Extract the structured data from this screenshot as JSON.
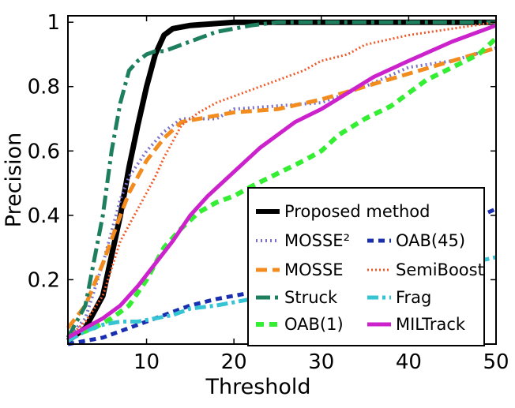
{
  "chart_data": {
    "type": "line",
    "xlabel": "Threshold",
    "ylabel": "Precision",
    "xlim": [
      1,
      50
    ],
    "ylim": [
      0,
      1.02
    ],
    "xticks": [
      10,
      20,
      30,
      40,
      50
    ],
    "yticks": [
      0.2,
      0.4,
      0.6,
      0.8,
      1
    ],
    "ytick_labels": [
      "0.2",
      "0.4",
      "0.6",
      "0.8",
      "1"
    ],
    "grid": false,
    "legend_position": "lower-right",
    "series": [
      {
        "name": "Proposed method",
        "color": "#000000",
        "style": "solid-thick",
        "x": [
          1,
          3,
          5,
          7,
          8,
          9,
          10,
          11,
          12,
          13,
          15,
          20,
          25,
          30,
          40,
          50
        ],
        "y": [
          0.01,
          0.05,
          0.15,
          0.4,
          0.55,
          0.68,
          0.8,
          0.9,
          0.96,
          0.98,
          0.99,
          1.0,
          1.0,
          1.0,
          1.0,
          1.0
        ]
      },
      {
        "name": "MOSSE²",
        "color": "#7b72c8",
        "style": "dotted",
        "x": [
          1,
          3,
          5,
          7,
          8,
          9,
          10,
          12,
          14,
          16,
          18,
          20,
          25,
          30,
          35,
          40,
          45,
          50
        ],
        "y": [
          0.02,
          0.08,
          0.25,
          0.45,
          0.52,
          0.56,
          0.6,
          0.66,
          0.7,
          0.7,
          0.7,
          0.73,
          0.74,
          0.75,
          0.8,
          0.86,
          0.88,
          0.92
        ]
      },
      {
        "name": "MOSSE",
        "color": "#f28c1e",
        "style": "dashed",
        "x": [
          1,
          3,
          5,
          7,
          8,
          9,
          10,
          12,
          14,
          16,
          18,
          20,
          25,
          30,
          35,
          40,
          45,
          50
        ],
        "y": [
          0.05,
          0.12,
          0.25,
          0.4,
          0.47,
          0.52,
          0.57,
          0.64,
          0.69,
          0.7,
          0.71,
          0.72,
          0.73,
          0.76,
          0.8,
          0.84,
          0.88,
          0.92
        ]
      },
      {
        "name": "Struck",
        "color": "#1e7f5e",
        "style": "dashdot",
        "x": [
          1,
          3,
          5,
          6,
          7,
          8,
          9,
          10,
          11,
          12,
          14,
          16,
          18,
          20,
          22,
          25,
          30,
          40,
          50
        ],
        "y": [
          0.02,
          0.12,
          0.4,
          0.6,
          0.75,
          0.85,
          0.88,
          0.9,
          0.91,
          0.91,
          0.93,
          0.95,
          0.97,
          0.98,
          0.99,
          1.0,
          1.0,
          1.0,
          1.0
        ]
      },
      {
        "name": "OAB(1)",
        "color": "#33ee33",
        "style": "dashed-heavy",
        "x": [
          1,
          2,
          4,
          6,
          8,
          10,
          12,
          14,
          16,
          18,
          20,
          22,
          25,
          28,
          30,
          32,
          35,
          38,
          40,
          42,
          45,
          48,
          50
        ],
        "y": [
          0.02,
          0.03,
          0.05,
          0.08,
          0.12,
          0.2,
          0.3,
          0.36,
          0.41,
          0.44,
          0.46,
          0.49,
          0.53,
          0.57,
          0.6,
          0.65,
          0.7,
          0.74,
          0.78,
          0.82,
          0.86,
          0.9,
          0.95
        ]
      },
      {
        "name": "OAB(45)",
        "color": "#1a2fb0",
        "style": "dashed-short",
        "x": [
          1,
          3,
          5,
          7,
          9,
          11,
          13,
          15,
          18,
          20,
          22,
          25,
          30,
          35,
          40,
          45,
          50
        ],
        "y": [
          0.0,
          0.01,
          0.02,
          0.04,
          0.06,
          0.08,
          0.1,
          0.12,
          0.14,
          0.15,
          0.16,
          0.17,
          0.2,
          0.25,
          0.3,
          0.36,
          0.42
        ]
      },
      {
        "name": "SemiBoost",
        "color": "#f05a28",
        "style": "dotted-fine",
        "x": [
          1,
          3,
          5,
          7,
          9,
          10,
          11,
          12,
          14,
          16,
          18,
          20,
          22,
          25,
          28,
          30,
          33,
          35,
          40,
          45,
          50
        ],
        "y": [
          0.02,
          0.07,
          0.15,
          0.32,
          0.42,
          0.47,
          0.52,
          0.58,
          0.68,
          0.72,
          0.75,
          0.77,
          0.79,
          0.82,
          0.85,
          0.88,
          0.9,
          0.93,
          0.96,
          0.98,
          1.0
        ]
      },
      {
        "name": "Frag",
        "color": "#35c4d4",
        "style": "dashdot-light",
        "x": [
          1,
          3,
          5,
          7,
          9,
          11,
          13,
          15,
          18,
          20,
          22,
          25,
          30,
          35,
          40,
          45,
          50
        ],
        "y": [
          0.01,
          0.04,
          0.06,
          0.07,
          0.07,
          0.08,
          0.09,
          0.11,
          0.12,
          0.13,
          0.14,
          0.15,
          0.17,
          0.19,
          0.21,
          0.24,
          0.27
        ]
      },
      {
        "name": "MILTrack",
        "color": "#cc22cc",
        "style": "solid",
        "x": [
          1,
          3,
          5,
          7,
          9,
          11,
          13,
          15,
          17,
          19,
          21,
          23,
          25,
          27,
          30,
          33,
          36,
          40,
          45,
          50
        ],
        "y": [
          0.02,
          0.05,
          0.08,
          0.12,
          0.18,
          0.25,
          0.32,
          0.4,
          0.46,
          0.51,
          0.56,
          0.61,
          0.65,
          0.69,
          0.73,
          0.78,
          0.83,
          0.88,
          0.94,
          0.99
        ]
      }
    ],
    "legend_layout": [
      [
        "Proposed method"
      ],
      [
        "MOSSE²",
        "OAB(45)"
      ],
      [
        "MOSSE",
        "SemiBoost"
      ],
      [
        "Struck",
        "Frag"
      ],
      [
        "OAB(1)",
        "MILTrack"
      ]
    ]
  }
}
